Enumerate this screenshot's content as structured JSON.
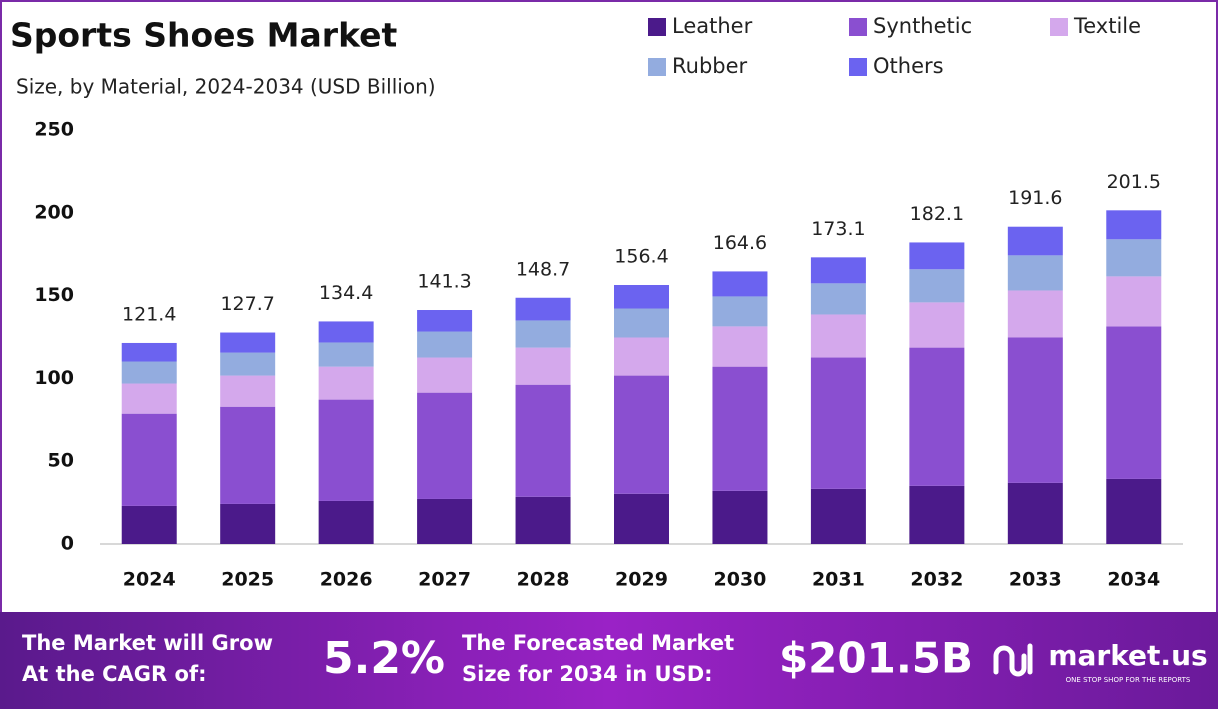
{
  "chart_data": {
    "type": "stacked_bar",
    "title": "Sports Shoes Market",
    "subtitle": "Size, by Material, 2024-2034 (USD Billion)",
    "categories": [
      "2024",
      "2025",
      "2026",
      "2027",
      "2028",
      "2029",
      "2030",
      "2031",
      "2032",
      "2033",
      "2034"
    ],
    "series": [
      {
        "name": "Leather",
        "color": "#4b1a8a",
        "values": [
          23.0,
          24.2,
          26.0,
          27.2,
          28.5,
          30.3,
          32.1,
          33.3,
          35.1,
          36.9,
          39.3
        ]
      },
      {
        "name": "Synthetic",
        "color": "#8a4fd0",
        "values": [
          55.7,
          58.7,
          61.2,
          64.2,
          67.7,
          71.4,
          75.0,
          79.3,
          83.5,
          87.8,
          92.1
        ]
      },
      {
        "name": "Textile",
        "color": "#d4a8ec",
        "values": [
          18.2,
          18.8,
          19.9,
          21.2,
          22.4,
          23.0,
          24.3,
          26.0,
          27.3,
          28.4,
          30.2
        ]
      },
      {
        "name": "Rubber",
        "color": "#93acdf",
        "values": [
          13.3,
          13.9,
          14.6,
          15.7,
          16.4,
          17.5,
          18.1,
          18.8,
          20.0,
          21.2,
          22.4
        ]
      },
      {
        "name": "Others",
        "color": "#6b63f0",
        "values": [
          11.2,
          12.1,
          12.7,
          13.0,
          13.7,
          14.2,
          15.1,
          15.7,
          16.2,
          17.3,
          17.5
        ]
      }
    ],
    "totals": [
      121.4,
      127.7,
      134.4,
      141.3,
      148.7,
      156.4,
      164.6,
      173.1,
      182.1,
      191.6,
      201.5
    ],
    "ylim": [
      0,
      250
    ],
    "yticks": [
      0,
      50,
      100,
      150,
      200,
      250
    ],
    "grid": false
  },
  "footer": {
    "cagr_text": [
      "The Market will Grow",
      "At the CAGR of:"
    ],
    "cagr_value": "5.2%",
    "forecast_text": [
      "The Forecasted Market",
      "Size for 2034 in USD:"
    ],
    "forecast_value": "$201.5B",
    "brand": "market.us",
    "tagline": "ONE STOP SHOP FOR THE REPORTS"
  }
}
